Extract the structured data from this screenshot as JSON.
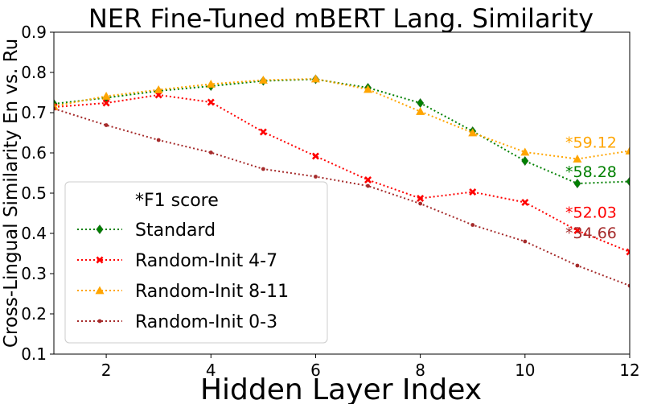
{
  "chart_data": {
    "type": "line",
    "title": "NER Fine-Tuned mBERT Lang. Similarity",
    "xlabel": "Hidden Layer Index",
    "ylabel": "Cross-Lingual Similarity En vs. Ru",
    "xlim": [
      1,
      12
    ],
    "ylim": [
      0.1,
      0.9
    ],
    "xticks": [
      "2",
      "4",
      "6",
      "8",
      "10",
      "12"
    ],
    "yticks": [
      "0.1",
      "0.2",
      "0.3",
      "0.4",
      "0.5",
      "0.6",
      "0.7",
      "0.8",
      "0.9"
    ],
    "grid": false,
    "legend_title": "*F1 score",
    "legend_position": "lower-left",
    "x": [
      1,
      2,
      3,
      4,
      5,
      6,
      7,
      8,
      9,
      10,
      11,
      12
    ],
    "series": [
      {
        "name": "Standard",
        "color": "#008000",
        "marker": "diamond",
        "values": [
          0.722,
          0.737,
          0.754,
          0.766,
          0.779,
          0.783,
          0.762,
          0.724,
          0.654,
          0.58,
          0.524,
          0.529
        ],
        "annotation": "*58.28"
      },
      {
        "name": "Random-Init 4-7",
        "color": "#ff0000",
        "marker": "x",
        "values": [
          0.714,
          0.724,
          0.744,
          0.726,
          0.652,
          0.592,
          0.533,
          0.487,
          0.503,
          0.477,
          0.407,
          0.354
        ],
        "annotation": "*52.03"
      },
      {
        "name": "Random-Init 8-11",
        "color": "#ffa500",
        "marker": "triangle",
        "values": [
          0.716,
          0.741,
          0.757,
          0.771,
          0.781,
          0.784,
          0.758,
          0.703,
          0.65,
          0.602,
          0.585,
          0.605
        ],
        "annotation": "*59.12"
      },
      {
        "name": "Random-Init 0-3",
        "color": "#a52a2a",
        "marker": "dot",
        "values": [
          0.71,
          0.669,
          0.632,
          0.601,
          0.56,
          0.541,
          0.518,
          0.474,
          0.421,
          0.38,
          0.32,
          0.27
        ],
        "annotation": "*34.66"
      }
    ]
  }
}
